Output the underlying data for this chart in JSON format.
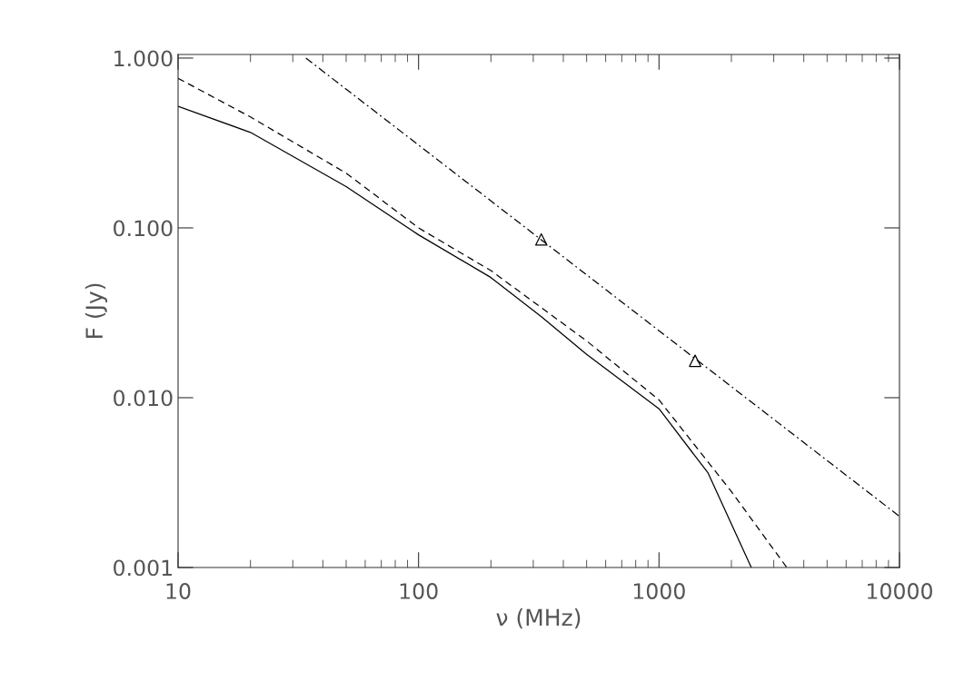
{
  "chart_data": {
    "type": "line",
    "xlabel": "ν (MHz)",
    "ylabel": "F (Jy)",
    "log": "xy",
    "grid": false,
    "legend": false,
    "xlim": [
      10,
      10000
    ],
    "ylim": [
      0.001,
      1.05
    ],
    "xticks": [
      10,
      100,
      1000,
      10000
    ],
    "yticks": [
      {
        "value": 0.001,
        "label": "0.001"
      },
      {
        "value": 0.01,
        "label": "0.010"
      },
      {
        "value": 0.1,
        "label": "0.100"
      },
      {
        "value": 1.0,
        "label": "1.000"
      }
    ],
    "series": [
      {
        "color": "#000000",
        "line_style": "solid",
        "marker": "none",
        "x": [
          10,
          20,
          50,
          100,
          200,
          324,
          500,
          1000,
          1600,
          2420
        ],
        "values": [
          0.52,
          0.365,
          0.175,
          0.091,
          0.051,
          0.03,
          0.018,
          0.0086,
          0.0036,
          0.001
        ]
      },
      {
        "color": "#000000",
        "line_style": "dashed",
        "marker": "none",
        "x": [
          10,
          20,
          50,
          100,
          200,
          500,
          1000,
          2000,
          3400
        ],
        "values": [
          0.76,
          0.45,
          0.21,
          0.1,
          0.056,
          0.0216,
          0.0097,
          0.0028,
          0.001
        ]
      },
      {
        "color": "#000000",
        "line_style": "dashdot",
        "marker": "none",
        "x": [
          34,
          10000
        ],
        "values": [
          1.0,
          0.002
        ]
      },
      {
        "type": "scatter",
        "color": "#000000",
        "marker": "triangle",
        "x": [
          324,
          1413
        ],
        "values": [
          0.0855,
          0.0165
        ]
      }
    ]
  }
}
